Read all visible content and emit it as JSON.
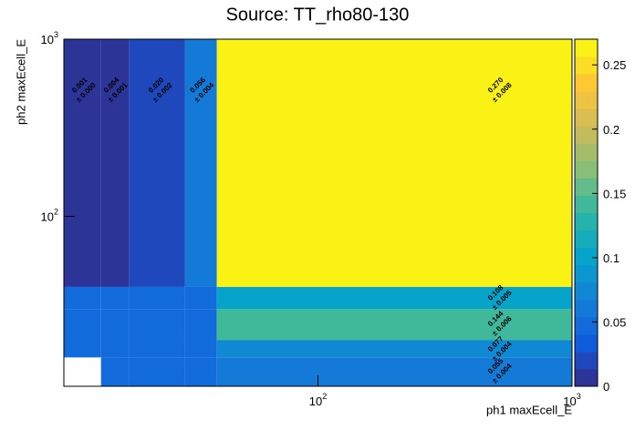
{
  "chart_data": {
    "type": "heatmap",
    "title": "Source: TT_rho80-130",
    "x_label": "ph1 maxEcell_E",
    "y_label": "ph2 maxEcell_E",
    "xscale": "log",
    "yscale": "log",
    "xlim": [
      10,
      1000
    ],
    "ylim": [
      11,
      1000
    ],
    "xticks": [
      {
        "value": 100,
        "label": "10",
        "exponent": "2"
      },
      {
        "value": 1000,
        "label": "10",
        "exponent": "3"
      }
    ],
    "yticks": [
      {
        "value": 100,
        "label": "10",
        "exponent": "2"
      },
      {
        "value": 1000,
        "label": "10",
        "exponent": "3"
      }
    ],
    "xbins": [
      10,
      14,
      18,
      30,
      40,
      1000
    ],
    "ybins": [
      11,
      16,
      20,
      30,
      40,
      1000
    ],
    "z": [
      [
        0,
        0.05,
        0.05,
        0.05,
        0.055
      ],
      [
        0.05,
        0.05,
        0.05,
        0.05,
        0.077
      ],
      [
        0.05,
        0.05,
        0.05,
        0.05,
        0.144
      ],
      [
        0.05,
        0.05,
        0.05,
        0.05,
        0.108
      ],
      [
        0.001,
        0.004,
        0.02,
        0.056,
        0.27
      ]
    ],
    "value_labels": [
      [
        null,
        null,
        null,
        null,
        "0.055"
      ],
      [
        null,
        null,
        null,
        null,
        "0.077"
      ],
      [
        null,
        null,
        null,
        null,
        "0.144"
      ],
      [
        null,
        null,
        null,
        null,
        "0.108"
      ],
      [
        "0.001",
        "0.004",
        "0.020",
        "0.056",
        "0.270"
      ]
    ],
    "error_labels": [
      [
        null,
        null,
        null,
        null,
        "± 0.004"
      ],
      [
        null,
        null,
        null,
        null,
        "± 0.004"
      ],
      [
        null,
        null,
        null,
        null,
        "± 0.006"
      ],
      [
        null,
        null,
        null,
        null,
        "± 0.005"
      ],
      [
        "± 0.000",
        "± 0.001",
        "± 0.002",
        "± 0.004",
        "± 0.008"
      ]
    ],
    "zlim": [
      0,
      0.27
    ],
    "zticks": [
      0,
      0.05,
      0.1,
      0.15,
      0.2,
      0.25
    ],
    "levels": 20,
    "palette": [
      "#352a87",
      "#0f5cdd",
      "#1481d6",
      "#06a4ca",
      "#2eb7a4",
      "#87bf77",
      "#d1bb59",
      "#fec832",
      "#f9fb0e"
    ]
  }
}
